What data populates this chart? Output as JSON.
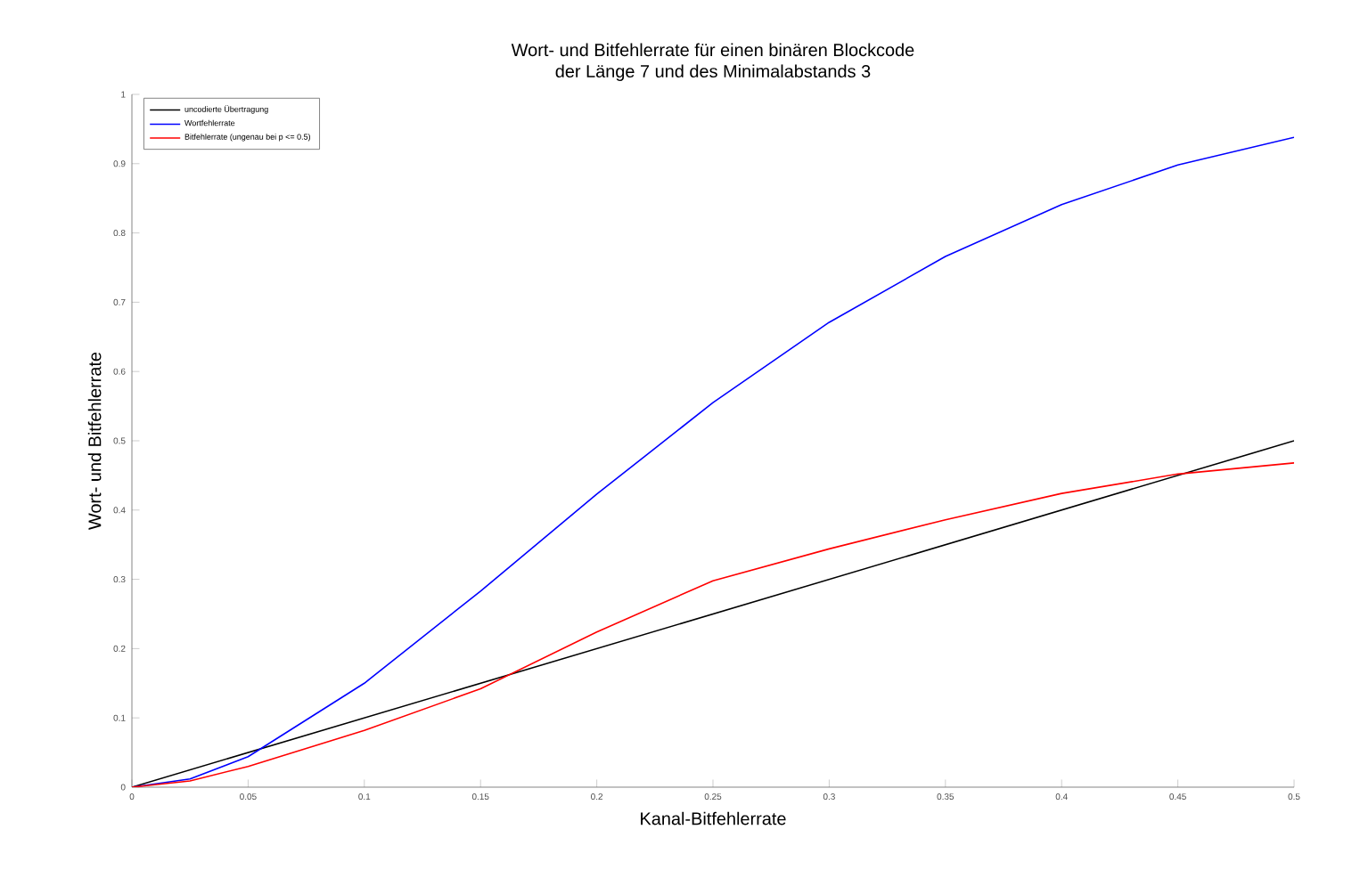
{
  "chart_data": {
    "type": "line",
    "title": "Wort- und Bitfehlerrate für einen binären Blockcode",
    "subtitle": "der Länge    7 und des Minimalabstands    3",
    "xlabel": "Kanal-Bitfehlerrate",
    "ylabel": "Wort- und Bitfehlerrate",
    "x": [
      0,
      0.025,
      0.05,
      0.1,
      0.15,
      0.2,
      0.25,
      0.3,
      0.35,
      0.4,
      0.45,
      0.5
    ],
    "series": [
      {
        "name": "uncodierte Übertragung",
        "color": "#000000",
        "x": [
          0,
          0.5
        ],
        "values": [
          0,
          0.5
        ]
      },
      {
        "name": "Wortfehlerrate",
        "color": "#0000ff",
        "values": [
          0,
          0.012,
          0.044,
          0.15,
          0.283,
          0.423,
          0.555,
          0.671,
          0.766,
          0.841,
          0.898,
          0.938
        ]
      },
      {
        "name": "Bitfehlerrate (ungenau bei p <= 0.5)",
        "color": "#ff0000",
        "values": [
          0,
          0.009,
          0.03,
          0.082,
          0.142,
          0.224,
          0.298,
          0.344,
          0.386,
          0.424,
          0.452,
          0.468
        ]
      }
    ],
    "xlim": [
      0,
      0.5
    ],
    "ylim": [
      0,
      1
    ],
    "xticks": [
      0,
      0.05,
      0.1,
      0.15,
      0.2,
      0.25,
      0.3,
      0.35,
      0.4,
      0.45,
      0.5
    ],
    "yticks": [
      0,
      0.1,
      0.2,
      0.3,
      0.4,
      0.5,
      0.6,
      0.7,
      0.8,
      0.9,
      1
    ],
    "legend": "top left",
    "marker": "none",
    "line_style": "solid"
  }
}
